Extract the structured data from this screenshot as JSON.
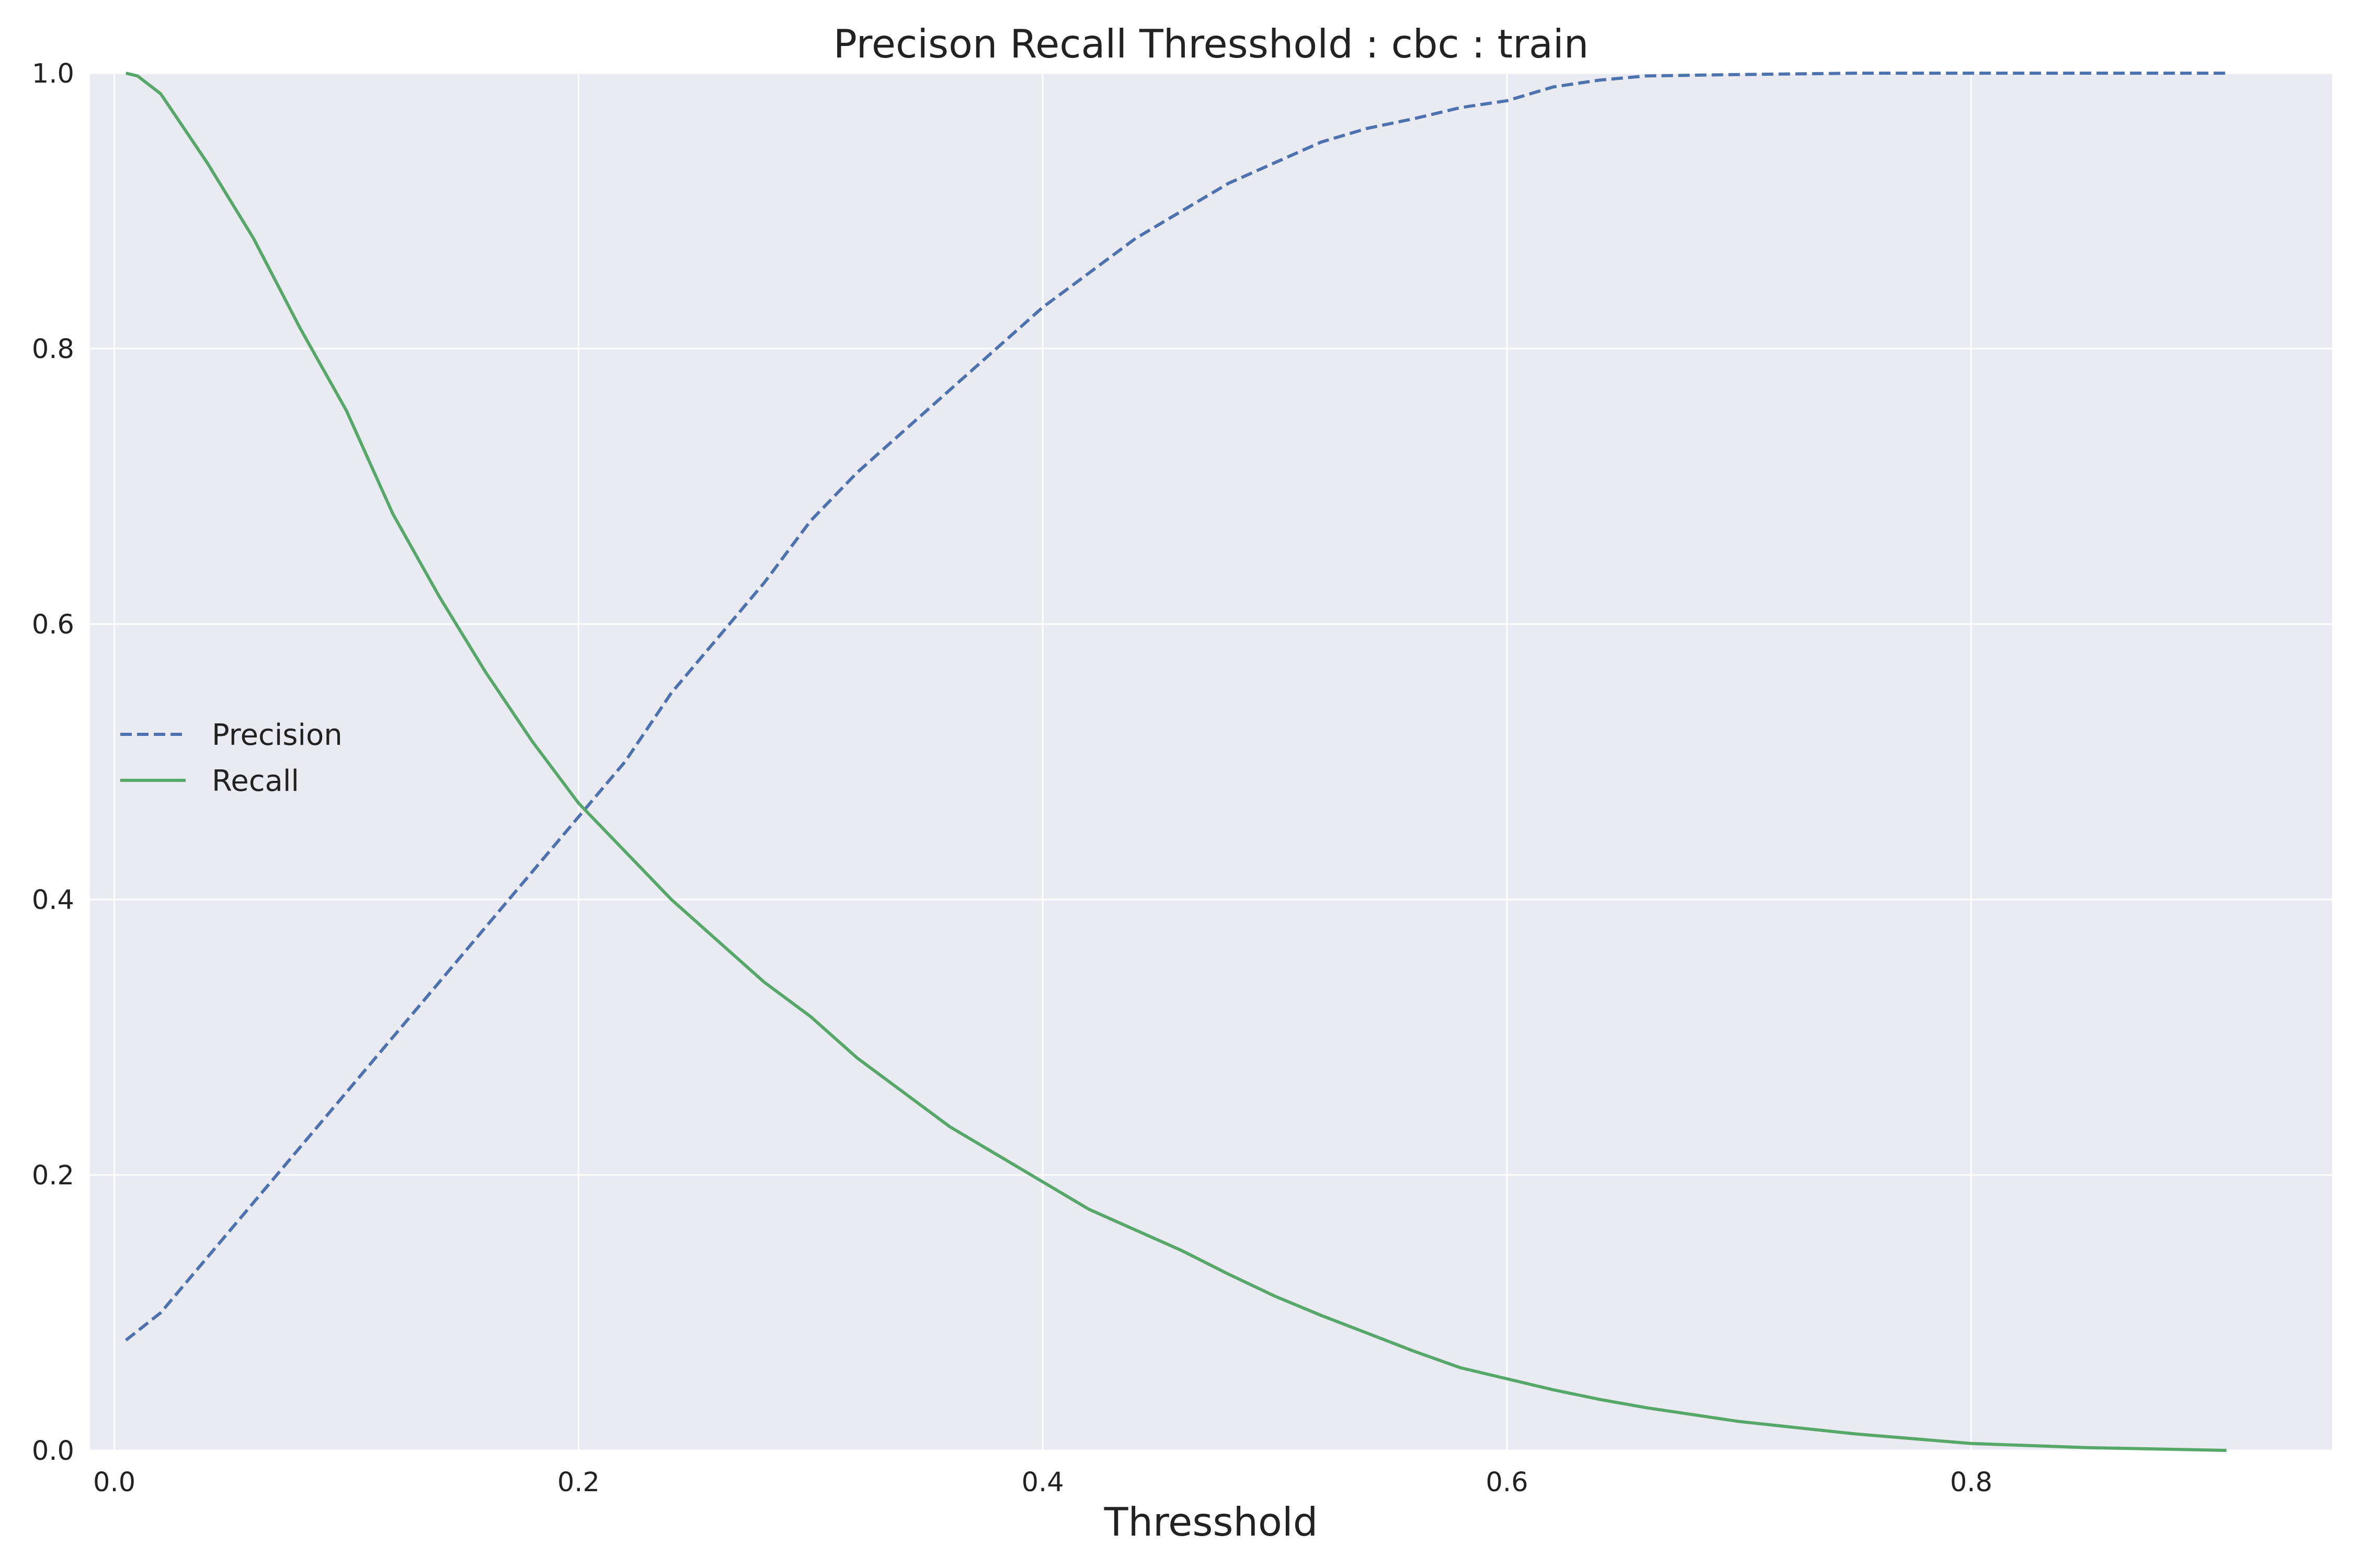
{
  "chart_data": {
    "type": "line",
    "title": "Precison Recall Thresshold : cbc : train",
    "xlabel": "Thresshold",
    "ylabel": "",
    "xlim": [
      -0.0105,
      0.9555
    ],
    "ylim": [
      0.0,
      1.0
    ],
    "xticks": [
      0.0,
      0.2,
      0.4,
      0.6,
      0.8
    ],
    "xtick_labels": [
      "0.0",
      "0.2",
      "0.4",
      "0.6",
      "0.8"
    ],
    "yticks": [
      0.0,
      0.2,
      0.4,
      0.6,
      0.8,
      1.0
    ],
    "ytick_labels": [
      "0.0",
      "0.2",
      "0.4",
      "0.6",
      "0.8",
      "1.0"
    ],
    "grid": true,
    "background": "#EAEAF2",
    "legend": {
      "placement": "center-left"
    },
    "series": [
      {
        "name": "Precision",
        "color": "#4C72B0",
        "style": "dashed",
        "x": [
          0.005,
          0.02,
          0.04,
          0.06,
          0.08,
          0.1,
          0.12,
          0.14,
          0.16,
          0.18,
          0.2,
          0.22,
          0.24,
          0.26,
          0.28,
          0.3,
          0.32,
          0.34,
          0.36,
          0.38,
          0.4,
          0.42,
          0.44,
          0.46,
          0.48,
          0.5,
          0.52,
          0.54,
          0.56,
          0.58,
          0.6,
          0.62,
          0.64,
          0.66,
          0.7,
          0.75,
          0.8,
          0.85,
          0.91
        ],
        "y": [
          0.08,
          0.1,
          0.14,
          0.18,
          0.22,
          0.26,
          0.3,
          0.34,
          0.38,
          0.42,
          0.46,
          0.5,
          0.55,
          0.59,
          0.63,
          0.675,
          0.71,
          0.74,
          0.77,
          0.8,
          0.83,
          0.855,
          0.88,
          0.9,
          0.92,
          0.935,
          0.95,
          0.96,
          0.967,
          0.975,
          0.98,
          0.99,
          0.995,
          0.998,
          0.999,
          1.0,
          1.0,
          1.0,
          1.0
        ]
      },
      {
        "name": "Recall",
        "color": "#55A868",
        "style": "solid",
        "x": [
          0.005,
          0.01,
          0.02,
          0.04,
          0.06,
          0.08,
          0.1,
          0.12,
          0.14,
          0.16,
          0.18,
          0.2,
          0.22,
          0.24,
          0.26,
          0.28,
          0.3,
          0.32,
          0.34,
          0.36,
          0.38,
          0.4,
          0.42,
          0.44,
          0.46,
          0.48,
          0.5,
          0.52,
          0.54,
          0.56,
          0.58,
          0.6,
          0.62,
          0.64,
          0.66,
          0.7,
          0.75,
          0.8,
          0.85,
          0.91
        ],
        "y": [
          1.0,
          0.998,
          0.985,
          0.935,
          0.88,
          0.815,
          0.755,
          0.68,
          0.62,
          0.565,
          0.515,
          0.47,
          0.435,
          0.4,
          0.37,
          0.34,
          0.315,
          0.285,
          0.26,
          0.235,
          0.215,
          0.195,
          0.175,
          0.16,
          0.145,
          0.128,
          0.112,
          0.098,
          0.085,
          0.072,
          0.06,
          0.052,
          0.044,
          0.037,
          0.031,
          0.021,
          0.012,
          0.005,
          0.002,
          0.0
        ]
      }
    ]
  }
}
